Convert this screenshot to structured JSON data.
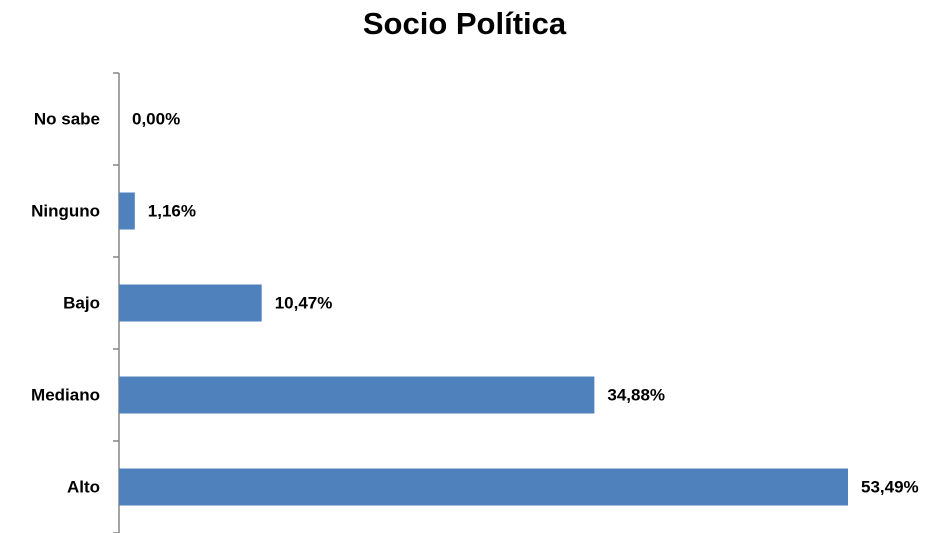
{
  "chart_data": {
    "type": "bar",
    "orientation": "horizontal",
    "title": "Socio Política",
    "xlabel": "",
    "ylabel": "",
    "categories": [
      "No sabe",
      "Ninguno",
      "Bajo",
      "Mediano",
      "Alto"
    ],
    "values": [
      0.0,
      1.16,
      10.47,
      34.88,
      53.49
    ],
    "value_labels": [
      "0,00%",
      "1,16%",
      "10,47%",
      "34,88%",
      "53,49%"
    ],
    "xlim": [
      0,
      53.49
    ],
    "grid": false,
    "legend": "none",
    "bar_color": "#4F81BD"
  }
}
